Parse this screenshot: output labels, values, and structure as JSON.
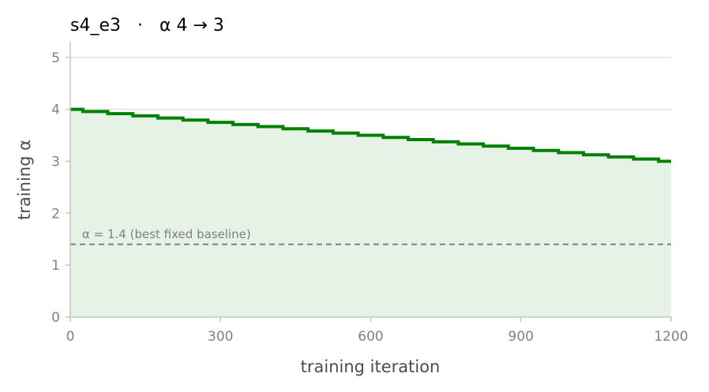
{
  "chart_data": {
    "type": "line",
    "title": "s4_e3   ·   α 4 → 3",
    "xlabel": "training iteration",
    "ylabel": "training α",
    "xlim": [
      0,
      1200
    ],
    "ylim": [
      0,
      5.3
    ],
    "xticks": [
      0,
      300,
      600,
      900,
      1200
    ],
    "xtick_labels": [
      "0",
      "300",
      "600",
      "900",
      "1200"
    ],
    "yticks": [
      0,
      1,
      2,
      3,
      4,
      5
    ],
    "ytick_labels": [
      "0",
      "1",
      "2",
      "3",
      "4",
      "5"
    ],
    "grid": "horizontal",
    "step": 50,
    "series": [
      {
        "color": "#008000",
        "fill": "#e5f2e5",
        "x": [
          0,
          50,
          100,
          150,
          200,
          250,
          300,
          350,
          400,
          450,
          500,
          550,
          600,
          650,
          700,
          750,
          800,
          850,
          900,
          950,
          1000,
          1050,
          1100,
          1150,
          1200
        ],
        "y": [
          4.0,
          3.958,
          3.917,
          3.875,
          3.833,
          3.792,
          3.75,
          3.708,
          3.667,
          3.625,
          3.583,
          3.542,
          3.5,
          3.458,
          3.417,
          3.375,
          3.333,
          3.292,
          3.25,
          3.208,
          3.167,
          3.125,
          3.083,
          3.042,
          3.0
        ]
      }
    ],
    "baseline": {
      "value": 1.4,
      "label": "α = 1.4 (best fixed baseline)",
      "color": "#808080"
    }
  }
}
